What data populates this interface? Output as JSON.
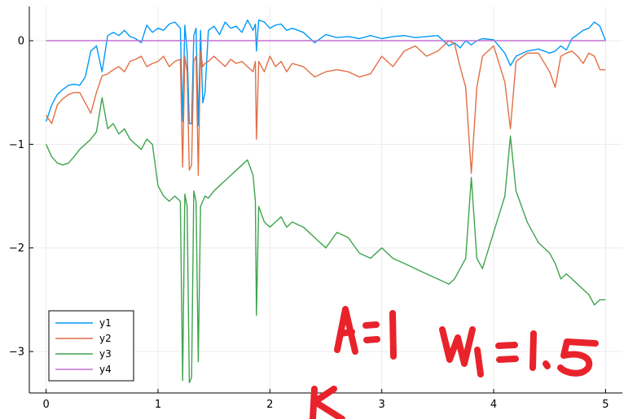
{
  "chart_data": {
    "type": "line",
    "title": "",
    "xlabel": "",
    "ylabel": "",
    "xlim": [
      -0.15,
      5.15
    ],
    "ylim": [
      -3.4,
      0.33
    ],
    "xticks": [
      0,
      1,
      2,
      3,
      4,
      5
    ],
    "yticks": [
      0,
      -1,
      -2,
      -3
    ],
    "xtick_labels": [
      "0",
      "1",
      "2",
      "3",
      "4",
      "5"
    ],
    "ytick_labels": [
      "0",
      "−1",
      "−2",
      "−3"
    ],
    "grid": true,
    "legend_position": "bottom-left",
    "series": [
      {
        "name": "y1",
        "color": "#009af9",
        "x": [
          0,
          0.05,
          0.1,
          0.15,
          0.2,
          0.25,
          0.3,
          0.35,
          0.4,
          0.45,
          0.5,
          0.55,
          0.6,
          0.65,
          0.7,
          0.75,
          0.8,
          0.85,
          0.9,
          0.95,
          1.0,
          1.05,
          1.1,
          1.15,
          1.2,
          1.22,
          1.24,
          1.26,
          1.28,
          1.3,
          1.32,
          1.34,
          1.36,
          1.38,
          1.4,
          1.42,
          1.45,
          1.5,
          1.55,
          1.6,
          1.65,
          1.7,
          1.75,
          1.8,
          1.85,
          1.87,
          1.88,
          1.9,
          1.95,
          2.0,
          2.05,
          2.1,
          2.15,
          2.2,
          2.3,
          2.4,
          2.5,
          2.6,
          2.7,
          2.8,
          2.9,
          3.0,
          3.1,
          3.2,
          3.3,
          3.4,
          3.5,
          3.6,
          3.65,
          3.7,
          3.75,
          3.8,
          3.85,
          3.9,
          4.0,
          4.1,
          4.15,
          4.2,
          4.3,
          4.4,
          4.5,
          4.55,
          4.6,
          4.65,
          4.7,
          4.75,
          4.8,
          4.85,
          4.9,
          4.95,
          5.0
        ],
        "y": [
          -0.78,
          -0.62,
          -0.52,
          -0.47,
          -0.43,
          -0.42,
          -0.43,
          -0.35,
          -0.1,
          -0.05,
          -0.3,
          0.05,
          0.08,
          0.05,
          0.1,
          0.04,
          0.02,
          -0.02,
          0.15,
          0.08,
          0.12,
          0.1,
          0.16,
          0.18,
          0.12,
          -0.78,
          0.15,
          -0.1,
          -0.8,
          -0.8,
          0.05,
          0.12,
          -0.82,
          0.1,
          -0.6,
          -0.5,
          0.1,
          0.14,
          0.06,
          0.18,
          0.12,
          0.14,
          0.08,
          0.2,
          0.1,
          0.16,
          -0.1,
          0.2,
          0.18,
          0.12,
          0.15,
          0.16,
          0.1,
          0.12,
          0.08,
          -0.02,
          0.06,
          0.03,
          0.04,
          0.02,
          0.05,
          0.02,
          0.04,
          0.05,
          0.03,
          0.04,
          0.05,
          -0.05,
          -0.02,
          -0.07,
          0.0,
          -0.04,
          0.0,
          0.02,
          0.01,
          -0.12,
          -0.24,
          -0.15,
          -0.1,
          -0.08,
          -0.12,
          -0.1,
          -0.05,
          -0.09,
          0.02,
          0.06,
          0.1,
          0.12,
          0.18,
          0.14,
          0.0
        ]
      },
      {
        "name": "y2",
        "color": "#e26f46",
        "x": [
          0,
          0.05,
          0.1,
          0.15,
          0.2,
          0.25,
          0.3,
          0.35,
          0.4,
          0.45,
          0.5,
          0.55,
          0.6,
          0.65,
          0.7,
          0.75,
          0.8,
          0.85,
          0.9,
          0.95,
          1.0,
          1.05,
          1.1,
          1.15,
          1.2,
          1.22,
          1.24,
          1.26,
          1.28,
          1.3,
          1.32,
          1.34,
          1.36,
          1.38,
          1.4,
          1.42,
          1.45,
          1.5,
          1.55,
          1.6,
          1.65,
          1.7,
          1.75,
          1.8,
          1.85,
          1.87,
          1.88,
          1.9,
          1.95,
          2.0,
          2.05,
          2.1,
          2.15,
          2.2,
          2.3,
          2.4,
          2.5,
          2.6,
          2.7,
          2.8,
          2.9,
          3.0,
          3.1,
          3.2,
          3.3,
          3.4,
          3.5,
          3.6,
          3.65,
          3.7,
          3.75,
          3.8,
          3.85,
          3.9,
          4.0,
          4.1,
          4.15,
          4.2,
          4.3,
          4.4,
          4.5,
          4.55,
          4.6,
          4.65,
          4.7,
          4.75,
          4.8,
          4.85,
          4.9,
          4.95,
          5.0
        ],
        "y": [
          -0.72,
          -0.8,
          -0.62,
          -0.56,
          -0.52,
          -0.5,
          -0.5,
          -0.6,
          -0.7,
          -0.5,
          -0.34,
          -0.32,
          -0.28,
          -0.25,
          -0.3,
          -0.2,
          -0.18,
          -0.15,
          -0.25,
          -0.22,
          -0.2,
          -0.15,
          -0.25,
          -0.2,
          -0.18,
          -1.22,
          -0.15,
          -0.3,
          -1.25,
          -1.2,
          -0.2,
          -0.15,
          -1.3,
          -0.1,
          -0.25,
          -0.22,
          -0.2,
          -0.15,
          -0.2,
          -0.25,
          -0.18,
          -0.22,
          -0.2,
          -0.25,
          -0.3,
          -0.2,
          -0.95,
          -0.2,
          -0.3,
          -0.15,
          -0.25,
          -0.2,
          -0.3,
          -0.22,
          -0.25,
          -0.35,
          -0.3,
          -0.28,
          -0.3,
          -0.35,
          -0.32,
          -0.15,
          -0.25,
          -0.1,
          -0.05,
          -0.15,
          -0.1,
          0.0,
          -0.03,
          -0.25,
          -0.45,
          -1.28,
          -0.45,
          -0.15,
          -0.05,
          -0.4,
          -0.85,
          -0.2,
          -0.12,
          -0.12,
          -0.3,
          -0.45,
          -0.15,
          -0.12,
          -0.1,
          -0.15,
          -0.22,
          -0.12,
          -0.15,
          -0.28,
          -0.28
        ]
      },
      {
        "name": "y3",
        "color": "#3ea44e",
        "x": [
          0,
          0.05,
          0.1,
          0.15,
          0.2,
          0.25,
          0.3,
          0.35,
          0.4,
          0.45,
          0.5,
          0.55,
          0.6,
          0.65,
          0.7,
          0.75,
          0.8,
          0.85,
          0.9,
          0.95,
          1.0,
          1.05,
          1.1,
          1.15,
          1.2,
          1.22,
          1.24,
          1.26,
          1.28,
          1.3,
          1.32,
          1.34,
          1.36,
          1.38,
          1.4,
          1.42,
          1.45,
          1.5,
          1.55,
          1.6,
          1.65,
          1.7,
          1.75,
          1.8,
          1.85,
          1.87,
          1.88,
          1.9,
          1.95,
          2.0,
          2.05,
          2.1,
          2.15,
          2.2,
          2.3,
          2.4,
          2.5,
          2.6,
          2.7,
          2.8,
          2.9,
          3.0,
          3.1,
          3.2,
          3.3,
          3.4,
          3.5,
          3.6,
          3.65,
          3.7,
          3.75,
          3.8,
          3.85,
          3.9,
          4.0,
          4.1,
          4.15,
          4.2,
          4.3,
          4.4,
          4.5,
          4.55,
          4.6,
          4.65,
          4.7,
          4.75,
          4.8,
          4.85,
          4.9,
          4.95,
          5.0
        ],
        "y": [
          -1.0,
          -1.12,
          -1.18,
          -1.2,
          -1.18,
          -1.12,
          -1.05,
          -1.0,
          -0.95,
          -0.88,
          -0.55,
          -0.85,
          -0.8,
          -0.9,
          -0.85,
          -0.95,
          -1.0,
          -1.05,
          -0.95,
          -1.0,
          -1.4,
          -1.5,
          -1.55,
          -1.5,
          -1.55,
          -3.28,
          -1.48,
          -1.6,
          -3.3,
          -3.25,
          -1.45,
          -1.55,
          -3.1,
          -1.6,
          -1.55,
          -1.5,
          -1.52,
          -1.45,
          -1.4,
          -1.35,
          -1.3,
          -1.25,
          -1.2,
          -1.15,
          -1.3,
          -1.55,
          -2.65,
          -1.6,
          -1.75,
          -1.8,
          -1.75,
          -1.7,
          -1.8,
          -1.75,
          -1.8,
          -1.9,
          -2.0,
          -1.85,
          -1.9,
          -2.05,
          -2.1,
          -2.0,
          -2.1,
          -2.15,
          -2.2,
          -2.25,
          -2.3,
          -2.35,
          -2.3,
          -2.2,
          -2.1,
          -1.32,
          -2.1,
          -2.2,
          -1.85,
          -1.5,
          -0.92,
          -1.45,
          -1.75,
          -1.95,
          -2.05,
          -2.15,
          -2.3,
          -2.25,
          -2.3,
          -2.35,
          -2.4,
          -2.45,
          -2.55,
          -2.5,
          -2.5
        ]
      },
      {
        "name": "y4",
        "color": "#c271d2",
        "x": [
          0,
          5.0
        ],
        "y": [
          0,
          0
        ]
      }
    ]
  },
  "annotation": {
    "color": "#e8232b",
    "lines": [
      "A=1  w₁=1.5",
      "K"
    ]
  }
}
